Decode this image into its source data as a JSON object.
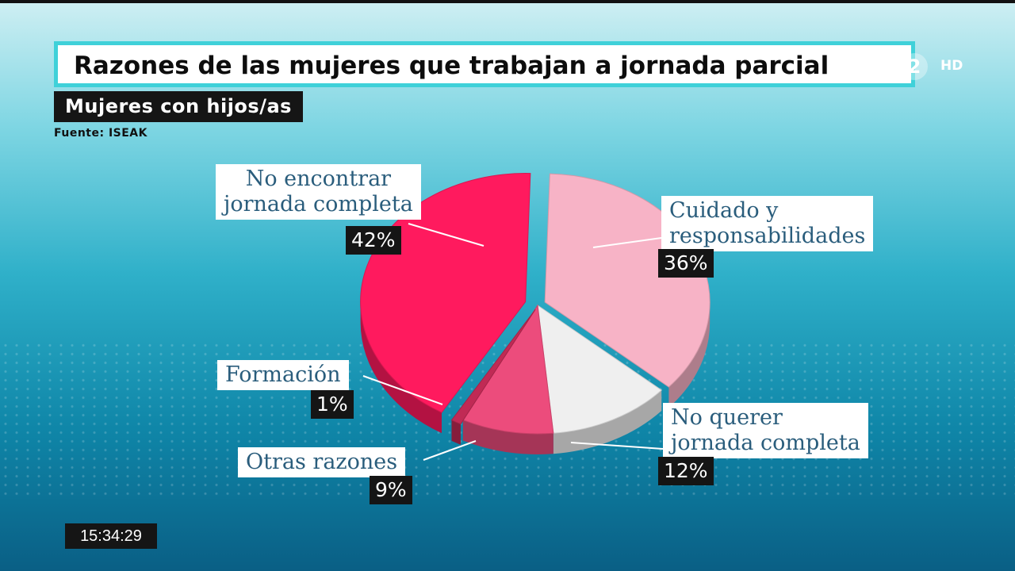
{
  "header": {
    "title": "Razones de las mujeres que trabajan a jornada parcial",
    "subtitle": "Mujeres con hijos/as",
    "source": "Fuente: ISEAK"
  },
  "channel": {
    "number": "2",
    "hd": "HD"
  },
  "clock": "15:34:29",
  "colors": {
    "no_encontrar": "#ff1a5e",
    "cuidado": "#f7b3c6",
    "no_querer": "#efefef",
    "otras": "#ec4c7c",
    "formacion": "#c02a55"
  },
  "chart_data": {
    "type": "pie",
    "title": "Razones de las mujeres que trabajan a jornada parcial",
    "subtitle": "Mujeres con hijos/as",
    "slices": [
      {
        "label_lines": [
          "No encontrar",
          "jornada completa"
        ],
        "value": 42,
        "pct": "42%",
        "color": "#ff1a5e"
      },
      {
        "label_lines": [
          "Cuidado y",
          "responsabilidades"
        ],
        "value": 36,
        "pct": "36%",
        "color": "#f7b3c6"
      },
      {
        "label_lines": [
          "No querer",
          "jornada completa"
        ],
        "value": 12,
        "pct": "12%",
        "color": "#efefef"
      },
      {
        "label_lines": [
          "Otras razones"
        ],
        "value": 9,
        "pct": "9%",
        "color": "#ec4c7c"
      },
      {
        "label_lines": [
          "Formación"
        ],
        "value": 1,
        "pct": "1%",
        "color": "#c02a55"
      }
    ]
  }
}
